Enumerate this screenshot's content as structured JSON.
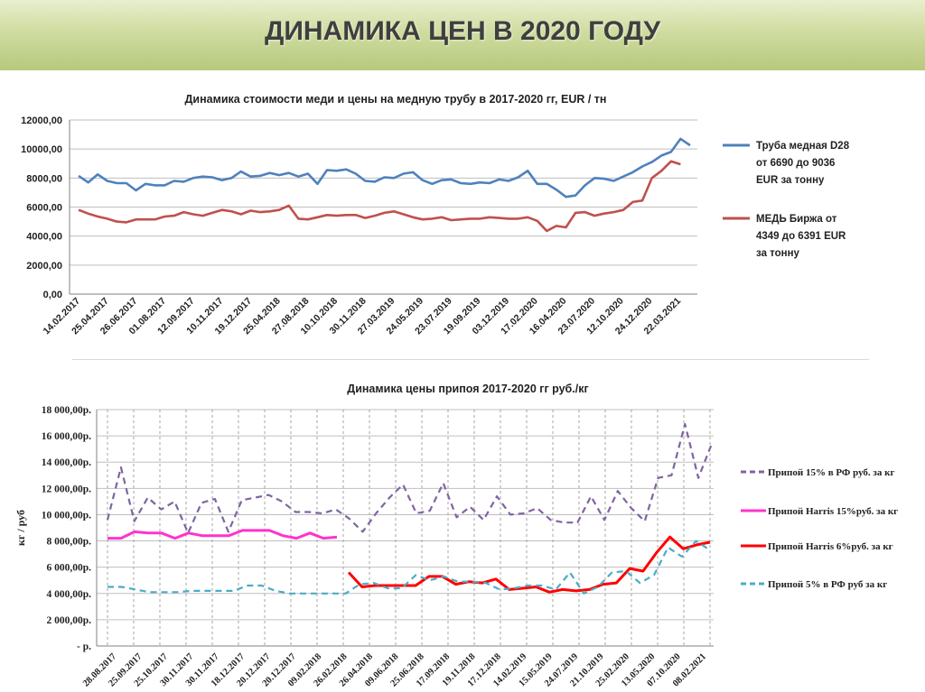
{
  "page": {
    "title": "ДИНАМИКА ЦЕН В 2020 ГОДУ"
  },
  "chart_data": [
    {
      "type": "line",
      "title": "Динамика стоимости меди и цены на медную трубу в 2017-2020 гг, EUR / тн",
      "xlabel": "",
      "ylabel": "",
      "ylim": [
        0,
        12000
      ],
      "yticks": [
        "0,00",
        "2000,00",
        "4000,00",
        "6000,00",
        "8000,00",
        "10000,00",
        "12000,00"
      ],
      "x_tick_labels": [
        "14.02.2017",
        "25.04.2017",
        "26.06.2017",
        "01.08.2017",
        "12.09.2017",
        "10.11.2017",
        "19.12.2017",
        "25.04.2018",
        "27.08.2018",
        "10.10.2018",
        "30.11.2018",
        "27.03.2019",
        "24.05.2019",
        "23.07.2019",
        "19.09.2019",
        "03.12.2019",
        "17.02.2020",
        "16.04.2020",
        "23.07.2020",
        "12.10.2020",
        "24.12.2020",
        "22.03.2021"
      ],
      "grid": true,
      "legend_position": "right",
      "series": [
        {
          "name": "Труба медная D28 от 6690 до 9036 EUR за тонну",
          "color": "#4f81bd",
          "values": [
            8150,
            7700,
            8250,
            7800,
            7650,
            7650,
            7150,
            7600,
            7500,
            7500,
            7800,
            7750,
            8000,
            8100,
            8050,
            7850,
            8000,
            8450,
            8100,
            8150,
            8350,
            8200,
            8350,
            8100,
            8300,
            7600,
            8550,
            8500,
            8600,
            8300,
            7800,
            7750,
            8050,
            8000,
            8300,
            8400,
            7850,
            7600,
            7850,
            7900,
            7650,
            7600,
            7700,
            7650,
            7900,
            7800,
            8050,
            8500,
            7600,
            7600,
            7200,
            6700,
            6800,
            7500,
            8000,
            7950,
            7800,
            8100,
            8400,
            8800,
            9100,
            9550,
            9800,
            10700,
            10250
          ]
        },
        {
          "name": "МЕДЬ Биржа от 4349 до 6391 EUR за тонну",
          "color": "#c0504d",
          "values": [
            5800,
            5550,
            5350,
            5200,
            5000,
            4950,
            5150,
            5150,
            5150,
            5350,
            5400,
            5650,
            5500,
            5400,
            5600,
            5800,
            5700,
            5500,
            5750,
            5650,
            5700,
            5800,
            6100,
            5200,
            5150,
            5300,
            5450,
            5400,
            5450,
            5450,
            5250,
            5400,
            5600,
            5700,
            5500,
            5300,
            5150,
            5200,
            5300,
            5100,
            5150,
            5200,
            5200,
            5300,
            5250,
            5200,
            5200,
            5300,
            5050,
            4350,
            4700,
            4600,
            5600,
            5650,
            5400,
            5550,
            5650,
            5800,
            6350,
            6450,
            8000,
            8500,
            9150,
            8950
          ]
        }
      ]
    },
    {
      "type": "line",
      "title": "Динамика цены припоя 2017-2020 гг  руб./кг",
      "xlabel": "",
      "ylabel": "кг / руб",
      "ylim": [
        0,
        18000
      ],
      "yticks": [
        "- р.",
        "2 000,00р.",
        "4 000,00р.",
        "6 000,00р.",
        "8 000,00р.",
        "10 000,00р.",
        "12 000,00р.",
        "14 000,00р.",
        "16 000,00р.",
        "18 000,00р."
      ],
      "x_tick_labels": [
        "28.08.2017",
        "25.09.2017",
        "25.10.2017",
        "30.11.2017",
        "30.11.2017",
        "18.12.2017",
        "20.12.2017",
        "20.12.2017",
        "09.02.2018",
        "26.02.2018",
        "26.04.2018",
        "09.06.2018",
        "25.06.2018",
        "17.09.2018",
        "19.11.2018",
        "17.12.2018",
        "14.02.2019",
        "15.05.2019",
        "24.07.2019",
        "21.10.2019",
        "25.02.2020",
        "13.05.2020",
        "07.10.2020",
        "08.02.2021"
      ],
      "grid": true,
      "legend_position": "right",
      "series": [
        {
          "name": "Припой  15% в РФ руб. за кг",
          "color": "#8064a2",
          "dash": "dashed",
          "values": [
            9600,
            13600,
            9500,
            11300,
            10400,
            11000,
            8600,
            10900,
            11200,
            8700,
            11100,
            11300,
            11500,
            11000,
            10200,
            10200,
            10100,
            10400,
            9700,
            8700,
            10100,
            11300,
            12300,
            10100,
            10300,
            12400,
            9800,
            10600,
            9600,
            11400,
            10000,
            10100,
            10500,
            9600,
            9400,
            9400,
            11400,
            9600,
            11800,
            10500,
            9500,
            12800,
            13000,
            16900,
            12800,
            15400
          ]
        },
        {
          "name": "Припой  Harris 15%руб. за кг",
          "color": "#ff33cc",
          "dash": "solid",
          "values": [
            8200,
            8200,
            8700,
            8600,
            8600,
            8200,
            8600,
            8400,
            8400,
            8400,
            8800,
            8800,
            8800,
            8400,
            8200,
            8600,
            8200,
            8300
          ]
        },
        {
          "name": "Припой  Harris 6%руб. за кг",
          "color": "#ff0000",
          "dash": "solid",
          "values": [
            5600,
            4500,
            4600,
            4600,
            4600,
            4600,
            5300,
            5300,
            4700,
            4900,
            4800,
            5100,
            4300,
            4400,
            4500,
            4100,
            4300,
            4200,
            4300,
            4700,
            4800,
            5900,
            5700,
            7100,
            8300,
            7400,
            7700,
            7900
          ]
        },
        {
          "name": "Припой  5% в РФ руб за кг",
          "color": "#4bacc6",
          "dash": "dashed",
          "values": [
            4500,
            4500,
            4300,
            4100,
            4100,
            4100,
            4200,
            4200,
            4200,
            4200,
            4600,
            4600,
            4200,
            4000,
            4000,
            4000,
            4000,
            4000,
            4700,
            4800,
            4400,
            4400,
            5400,
            5000,
            5300,
            4900,
            4900,
            4800,
            4300,
            4400,
            4600,
            4600,
            4300,
            5600,
            4000,
            4500,
            5600,
            5700,
            4800,
            5400,
            7500,
            6800,
            8000,
            7300
          ]
        }
      ]
    }
  ]
}
